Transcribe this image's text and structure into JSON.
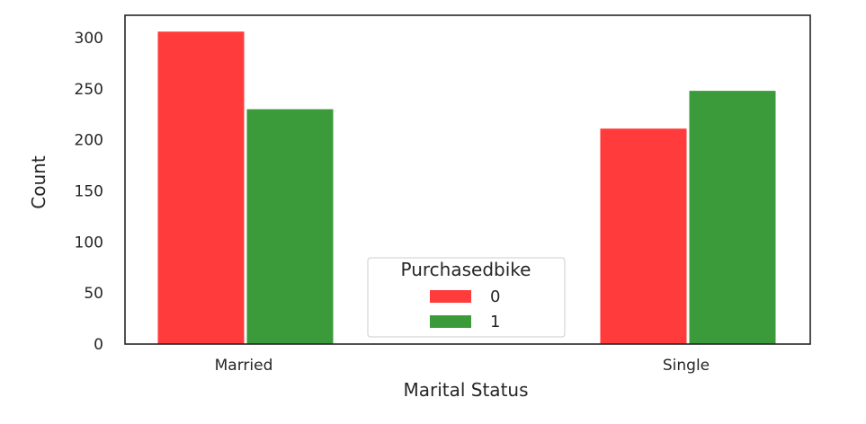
{
  "chart_data": {
    "type": "bar",
    "xlabel": "Marital Status",
    "ylabel": "Count",
    "categories": [
      "Married",
      "Single"
    ],
    "series": [
      {
        "name": "0",
        "values": [
          306,
          211
        ],
        "color": "#ff3b3b"
      },
      {
        "name": "1",
        "values": [
          230,
          248
        ],
        "color": "#3b9b3b"
      }
    ],
    "ylim": [
      0,
      322
    ],
    "yticks": [
      0,
      50,
      100,
      150,
      200,
      250,
      300
    ],
    "grid": false,
    "legend": {
      "title": "Purchasedbike",
      "placement": "bottom-center"
    }
  }
}
